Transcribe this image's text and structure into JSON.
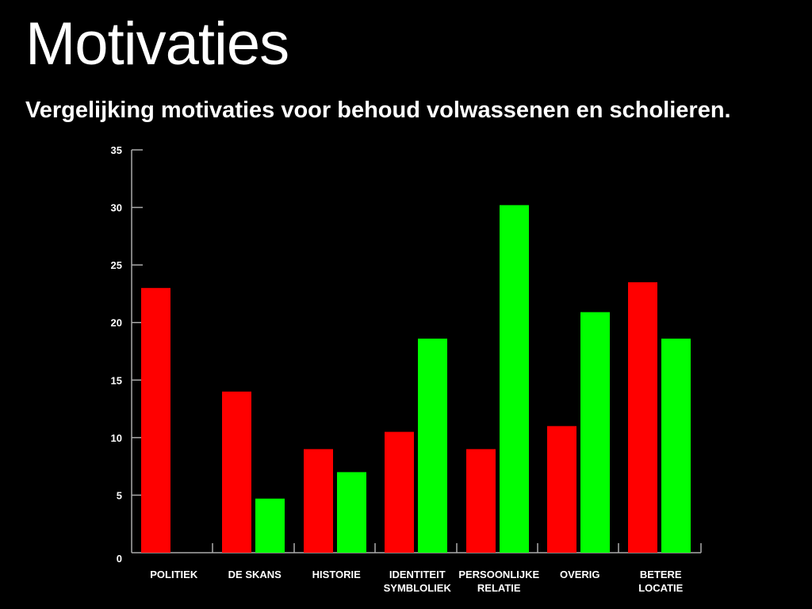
{
  "slide": {
    "title": "Motivaties",
    "subtitle": "Vergelijking motivaties voor behoud volwassenen en scholieren."
  },
  "colors": {
    "background": "#000000",
    "series_a": "#ff0000",
    "series_b": "#00ff00",
    "axis": "#aaaaaa",
    "text": "#ffffff"
  },
  "chart_data": {
    "type": "bar",
    "categories": [
      [
        "POLITIEK"
      ],
      [
        "DE SKANS"
      ],
      [
        "HISTORIE"
      ],
      [
        "IDENTITEIT",
        "SYMBLOLIEK"
      ],
      [
        "PERSOONLIJKE",
        "RELATIE"
      ],
      [
        "OVERIG"
      ],
      [
        "BETERE",
        "LOCATIE"
      ]
    ],
    "series": [
      {
        "color": "#ff0000",
        "values": [
          23,
          14,
          9,
          10.5,
          9,
          11,
          23.5
        ]
      },
      {
        "color": "#00ff00",
        "values": [
          0,
          4.7,
          7,
          18.6,
          30.2,
          20.9,
          18.6
        ]
      }
    ],
    "ylim": [
      0,
      35
    ],
    "yticks": [
      0,
      5,
      10,
      15,
      20,
      25,
      30,
      35
    ],
    "grid": false,
    "legend": "none"
  }
}
